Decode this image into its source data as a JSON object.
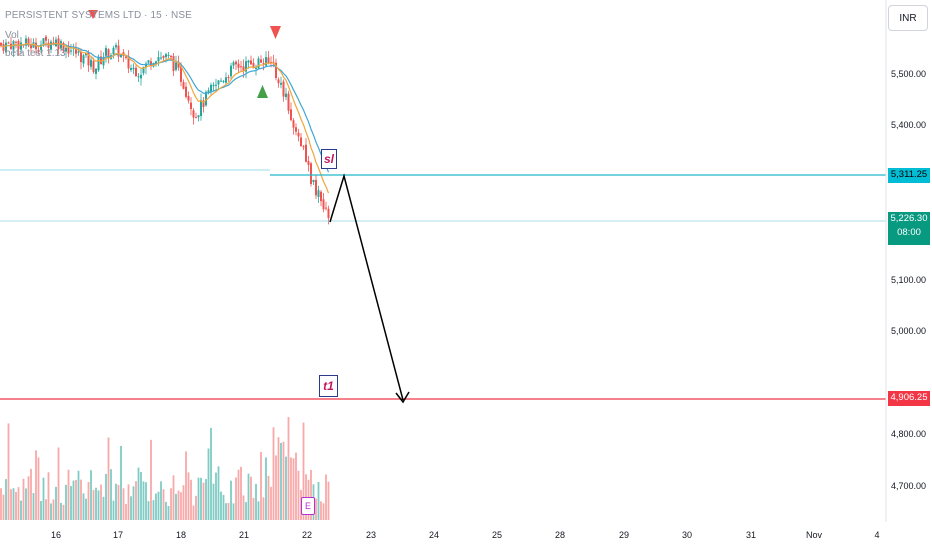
{
  "legend": {
    "symbol_line": "PERSISTENT SYSTEMS LTD · 15 · NSE",
    "volume_label": "Vol",
    "indicator_label": "beta test 1.13"
  },
  "currency_button": "INR",
  "price_axis": {
    "ticks": [
      "5,500.00",
      "5,400.00",
      "5,100.00",
      "5,000.00",
      "4,800.00",
      "4,700.00"
    ]
  },
  "time_axis": {
    "ticks": [
      "16",
      "17",
      "18",
      "21",
      "22",
      "23",
      "24",
      "25",
      "28",
      "29",
      "30",
      "31",
      "Nov",
      "4"
    ]
  },
  "price_labels": {
    "sl_level": "5,311.25",
    "last_price": "5,226.30",
    "countdown": "08:00",
    "target_level": "4,906.25"
  },
  "annotations": {
    "sl_label": "sl",
    "t1_label": "t1",
    "earnings_marker": "E"
  },
  "colors": {
    "up": "#26a69a",
    "down": "#ef5350",
    "sl_line": "#22b7cc",
    "last_line": "#8fd3df",
    "target_line": "#f23645",
    "ema_fast": "#f0a63b",
    "ema_slow": "#3fa7d6",
    "last_badge": "#089981",
    "sl_badge": "#00bcd4",
    "target_badge": "#f23645"
  },
  "chart_data": {
    "type": "candlestick",
    "y_range": [
      4700,
      5570
    ],
    "levels": {
      "sl": 5311.25,
      "last": 5226.3,
      "target": 4906.25
    },
    "sessions": [
      "16",
      "17",
      "18",
      "21",
      "22"
    ]
  }
}
